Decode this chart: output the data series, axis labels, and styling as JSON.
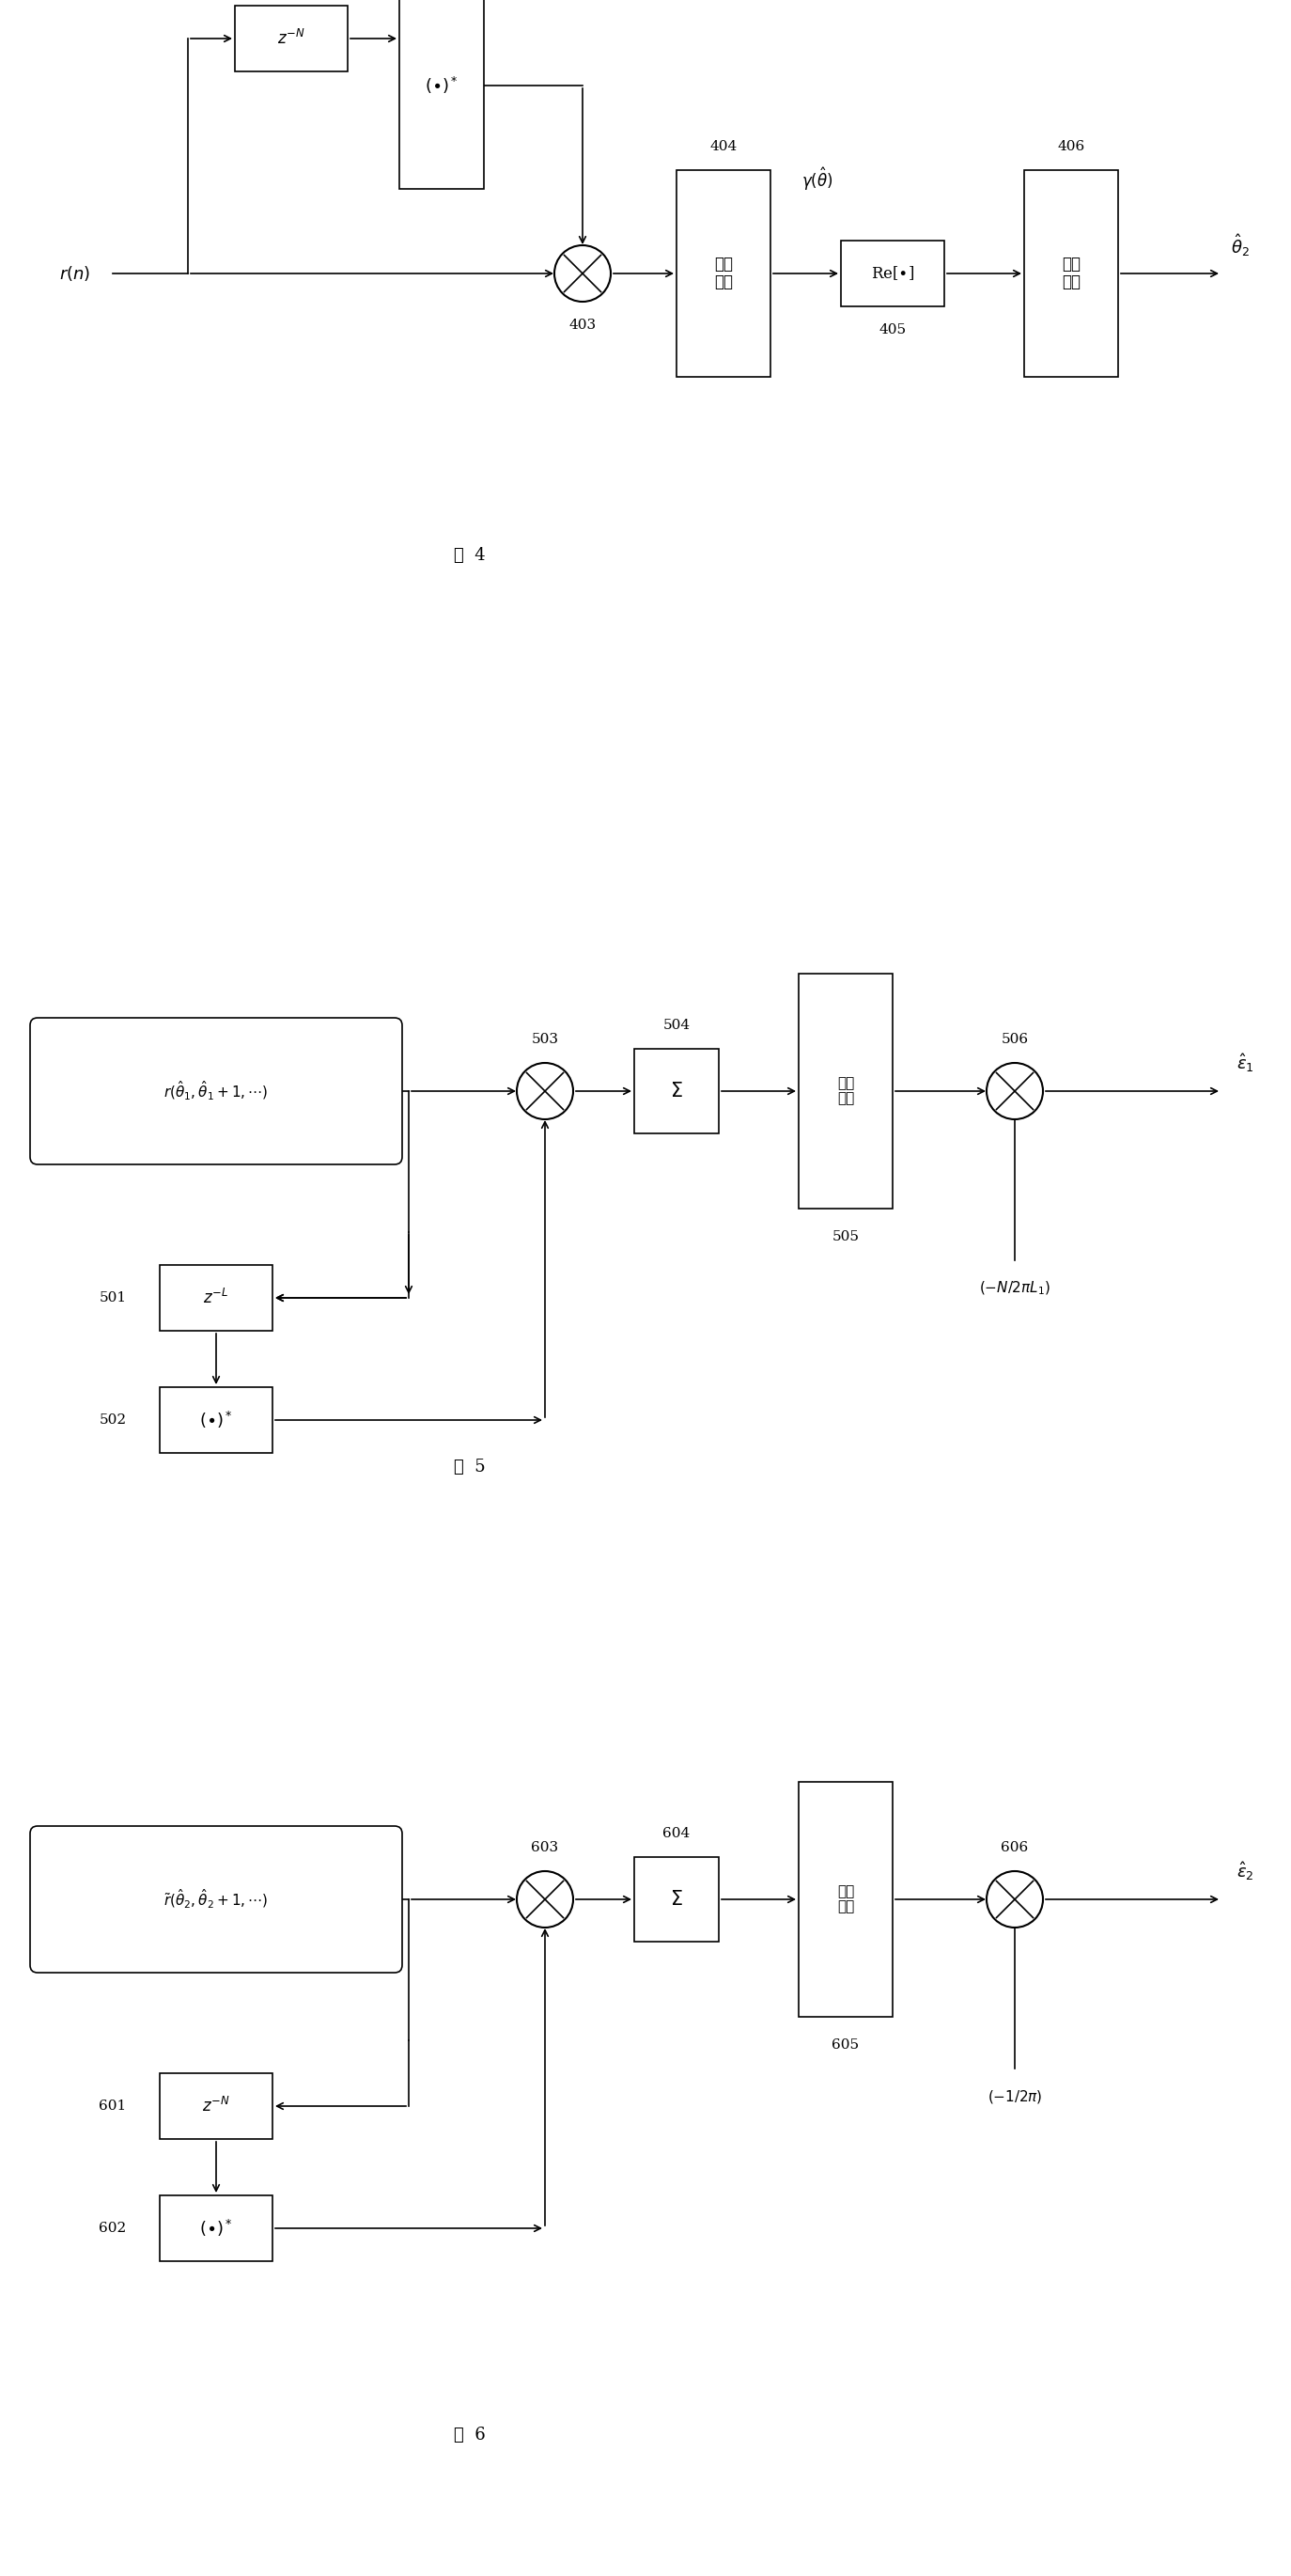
{
  "bg_color": "#ffffff",
  "fig4_title": "图  4",
  "fig5_title": "图  5",
  "fig6_title": "图  6"
}
